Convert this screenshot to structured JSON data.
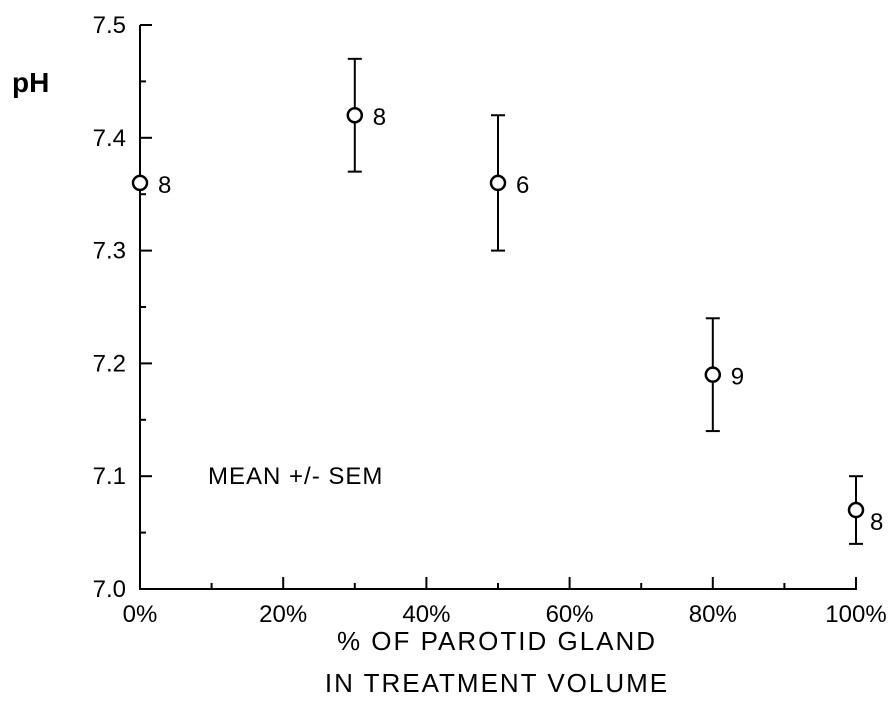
{
  "chart_data": {
    "type": "scatter",
    "ylabel": "pH",
    "xlabel_lines": [
      "% OF PAROTID GLAND",
      "IN TREATMENT VOLUME"
    ],
    "annotation": "MEAN +/- SEM",
    "xlim": [
      0,
      100
    ],
    "ylim": [
      7.0,
      7.5
    ],
    "x_ticks": [
      {
        "value": 0,
        "label": "0%"
      },
      {
        "value": 20,
        "label": "20%"
      },
      {
        "value": 40,
        "label": "40%"
      },
      {
        "value": 60,
        "label": "60%"
      },
      {
        "value": 80,
        "label": "80%"
      },
      {
        "value": 100,
        "label": "100%"
      }
    ],
    "y_ticks": [
      {
        "value": 7.0,
        "label": "7.0"
      },
      {
        "value": 7.1,
        "label": "7.1"
      },
      {
        "value": 7.2,
        "label": "7.2"
      },
      {
        "value": 7.3,
        "label": "7.3"
      },
      {
        "value": 7.4,
        "label": "7.4"
      },
      {
        "value": 7.5,
        "label": "7.5"
      }
    ],
    "x_minor_step": 10,
    "y_minor_step": 0.05,
    "points": [
      {
        "x": 0,
        "y": 7.36,
        "err": 0.0,
        "n": "8"
      },
      {
        "x": 30,
        "y": 7.42,
        "err": 0.05,
        "n": "8"
      },
      {
        "x": 50,
        "y": 7.36,
        "err": 0.06,
        "n": "6"
      },
      {
        "x": 80,
        "y": 7.19,
        "err": 0.05,
        "n": "9"
      },
      {
        "x": 100,
        "y": 7.07,
        "err": 0.03,
        "n": "8"
      }
    ]
  }
}
